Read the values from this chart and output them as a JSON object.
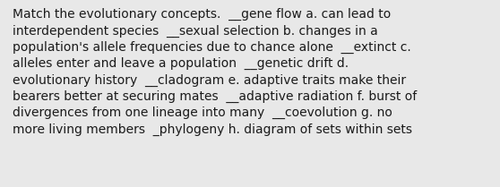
{
  "lines": [
    "Match the evolutionary concepts.  __gene flow a. can lead to",
    "interdependent species  __sexual selection b. changes in a",
    "population's allele frequencies due to chance alone  __extinct c.",
    "alleles enter and leave a population  __genetic drift d.",
    "evolutionary history  __cladogram e. adaptive traits make their",
    "bearers better at securing mates  __adaptive radiation f. burst of",
    "divergences from one lineage into many  __coevolution g. no",
    "more living members  _phylogeny h. diagram of sets within sets"
  ],
  "background_color": "#e8e8e8",
  "text_color": "#1a1a1a",
  "font_size": 10.0,
  "fig_width": 5.58,
  "fig_height": 2.09,
  "dpi": 100
}
